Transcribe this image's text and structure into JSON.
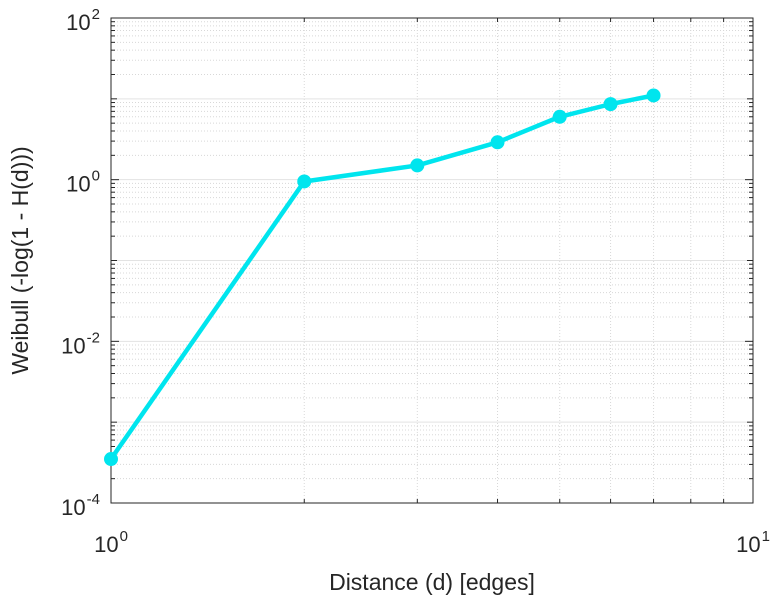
{
  "chart_data": {
    "type": "line",
    "xscale": "log",
    "yscale": "log",
    "xlim": [
      1,
      10
    ],
    "ylim": [
      0.0001,
      100
    ],
    "xlabel": "Distance (d) [edges]",
    "ylabel": "Weibull (-log(1 - H(d)))",
    "x_ticks": [
      {
        "value": 1,
        "base": "10",
        "exp": "0"
      },
      {
        "value": 10,
        "base": "10",
        "exp": "1"
      }
    ],
    "y_ticks": [
      {
        "value": 0.0001,
        "base": "10",
        "exp": "-4"
      },
      {
        "value": 0.01,
        "base": "10",
        "exp": "-2"
      },
      {
        "value": 1,
        "base": "10",
        "exp": "0"
      },
      {
        "value": 100,
        "base": "10",
        "exp": "2"
      }
    ],
    "grid": true,
    "minor_grid": true,
    "series": [
      {
        "color": "#00e5ee",
        "marker": "circle",
        "x": [
          1,
          2,
          3,
          4,
          5,
          6,
          7
        ],
        "y": [
          0.00035,
          0.95,
          1.5,
          2.9,
          6.0,
          8.6,
          11.0
        ]
      }
    ]
  }
}
